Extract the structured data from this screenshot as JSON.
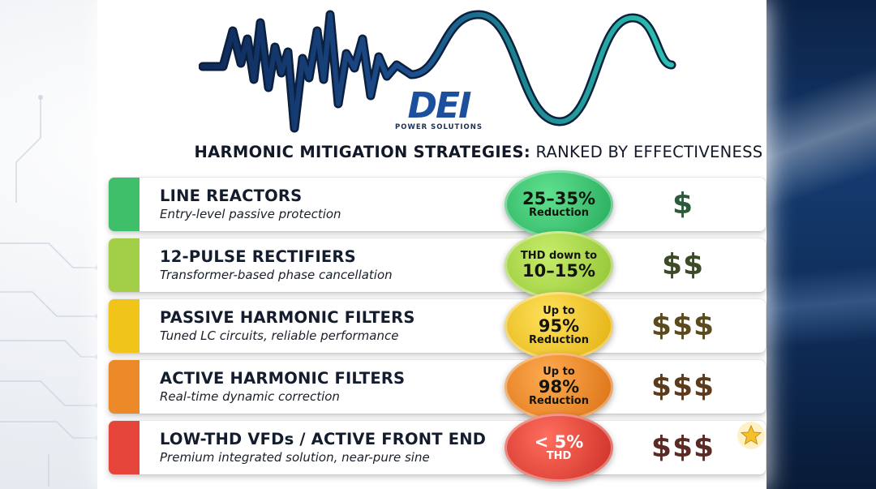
{
  "logo": {
    "mark": "DEI",
    "subtitle": "POWER SOLUTIONS"
  },
  "title": {
    "bold": "HARMONIC MITIGATION STRATEGIES:",
    "rest": " RANKED BY EFFECTIVENESS"
  },
  "rows": [
    {
      "name": "LINE REACTORS",
      "desc": "Entry-level passive protection",
      "badge_lines": [
        "25–35%",
        "Reduction"
      ],
      "cost": "$",
      "bar_color": "#3fbf6a",
      "badge_color": "#2ebd6b",
      "cost_color": "#2e5a3c"
    },
    {
      "name": "12-PULSE RECTIFIERS",
      "desc": "Transformer-based phase cancellation",
      "badge_lines": [
        "THD down to",
        "10–15%"
      ],
      "cost": "$$",
      "bar_color": "#a2cf47",
      "badge_color": "#a8d344",
      "cost_color": "#3c4a26"
    },
    {
      "name": "PASSIVE HARMONIC FILTERS",
      "desc": "Tuned LC circuits, reliable performance",
      "badge_lines": [
        "Up to",
        "95%",
        "Reduction"
      ],
      "cost": "$$$",
      "bar_color": "#f0c419",
      "badge_color": "#f2c81a",
      "cost_color": "#5a4a1e"
    },
    {
      "name": "ACTIVE HARMONIC FILTERS",
      "desc": "Real-time dynamic correction",
      "badge_lines": [
        "Up to",
        "98%",
        "Reduction"
      ],
      "cost": "$$$",
      "bar_color": "#ec8a2a",
      "badge_color": "#ee8a25",
      "cost_color": "#5c3a1c"
    },
    {
      "name": "LOW-THD VFDs / ACTIVE FRONT END",
      "desc": "Premium integrated solution, near-pure sine",
      "badge_lines": [
        "< 5%",
        "THD"
      ],
      "cost": "$$$",
      "bar_color": "#e5453a",
      "badge_color": "#e3453c",
      "cost_color": "#5a2a24"
    }
  ],
  "icons": {
    "premium": "star-icon"
  }
}
